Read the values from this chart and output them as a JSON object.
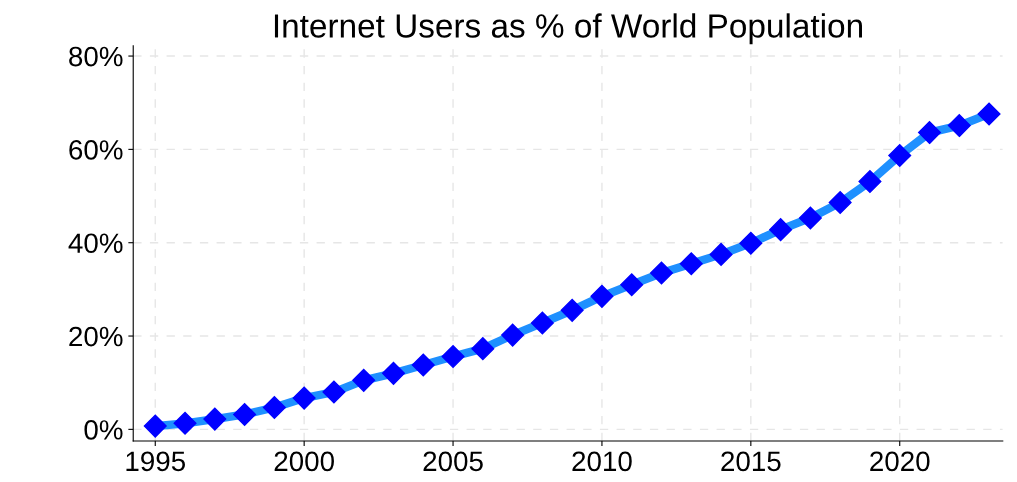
{
  "chart_data": {
    "type": "line",
    "title": "Internet Users as % of World Population",
    "x": [
      1995,
      1996,
      1997,
      1998,
      1999,
      2000,
      2001,
      2002,
      2003,
      2004,
      2005,
      2006,
      2007,
      2008,
      2009,
      2010,
      2011,
      2012,
      2013,
      2014,
      2015,
      2016,
      2017,
      2018,
      2019,
      2020,
      2021,
      2022,
      2023
    ],
    "series": [
      {
        "color": "#1e90ff",
        "colors": [
          "#0000ff",
          "#0000ff",
          "#0000ff",
          "#0000ff",
          "#0000ff",
          "#0000ff",
          "#0000ff",
          "#0000ff",
          "#0000ff",
          "#0000ff",
          "#0000ff",
          "#0000ff",
          "#0000ff",
          "#0000ff",
          "#0000ff",
          "#0000ff",
          "#0000ff",
          "#0000ff",
          "#0000ff",
          "#0000ff",
          "#0000ff",
          "#0000ff",
          "#0000ff",
          "#0000ff",
          "#0000ff",
          "#0000ff",
          "#0000ff",
          "#0000ff",
          "#0000ff"
        ],
        "values": [
          0.7,
          1.3,
          2.2,
          3.2,
          4.7,
          6.7,
          8.0,
          10.5,
          12.0,
          13.8,
          15.6,
          17.3,
          20.2,
          22.8,
          25.5,
          28.5,
          31.0,
          33.5,
          35.5,
          37.5,
          39.9,
          42.8,
          45.3,
          48.6,
          53.1,
          58.7,
          63.6,
          65.1,
          67.6
        ]
      }
    ],
    "xlim": [
      1994.26,
      2023.46
    ],
    "ylim": [
      -2.5,
      82.2
    ],
    "xticks": [
      1995,
      2000,
      2005,
      2010,
      2015,
      2020
    ],
    "yticks": [
      {
        "value": 0,
        "label": "0%"
      },
      {
        "value": 20,
        "label": "20%"
      },
      {
        "value": 40,
        "label": "40%"
      },
      {
        "value": 60,
        "label": "60%"
      },
      {
        "value": 80,
        "label": "80%"
      }
    ],
    "grid": true,
    "marker": "diamond",
    "line_style": "solid"
  }
}
